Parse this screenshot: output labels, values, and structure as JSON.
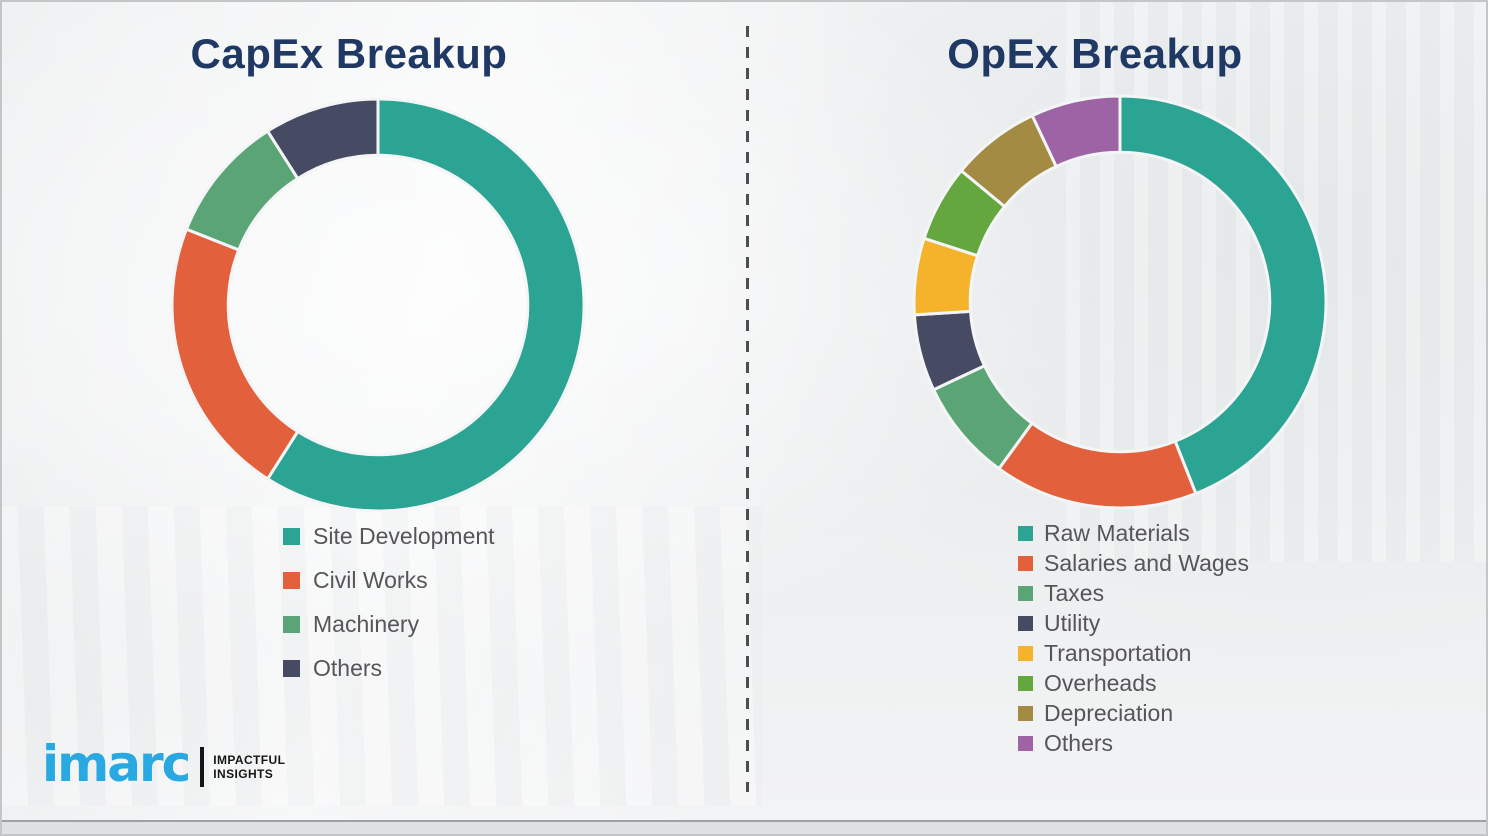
{
  "page": {
    "background_color": "#eff1f2",
    "divider_style": "vertical-dashed",
    "divider_color": "#4b4d4f",
    "title_color": "#1F3864",
    "legend_text_color": "#565659"
  },
  "branding": {
    "logo_text": "imarc",
    "tagline_line1": "IMPACTFUL",
    "tagline_line2": "INSIGHTS",
    "logo_color": "#29A9E1"
  },
  "chart_data": [
    {
      "type": "pie",
      "subtype": "donut",
      "title": "CapEx Breakup",
      "categories": [
        "Site Development",
        "Civil Works",
        "Machinery",
        "Others"
      ],
      "values": [
        59,
        22,
        10,
        9
      ],
      "unit": "percent",
      "colors": [
        "#2BA493",
        "#E2603C",
        "#5AA476",
        "#474A63"
      ],
      "start_angle_deg": 0,
      "direction": "clockwise",
      "inner_radius_ratio": 0.727,
      "legend_position": "below-left",
      "data_labels": "none"
    },
    {
      "type": "pie",
      "subtype": "donut",
      "title": "OpEx Breakup",
      "categories": [
        "Raw Materials",
        "Salaries and Wages",
        "Taxes",
        "Utility",
        "Transportation",
        "Overheads",
        "Depreciation",
        "Others"
      ],
      "values": [
        44,
        16,
        8,
        6,
        6,
        6,
        7,
        7
      ],
      "unit": "percent",
      "colors": [
        "#2BA493",
        "#E2603C",
        "#5AA476",
        "#474A63",
        "#F4B32B",
        "#63A73E",
        "#A48B44",
        "#9D63A5"
      ],
      "start_angle_deg": 0,
      "direction": "clockwise",
      "inner_radius_ratio": 0.727,
      "legend_position": "below-left",
      "data_labels": "none"
    }
  ]
}
